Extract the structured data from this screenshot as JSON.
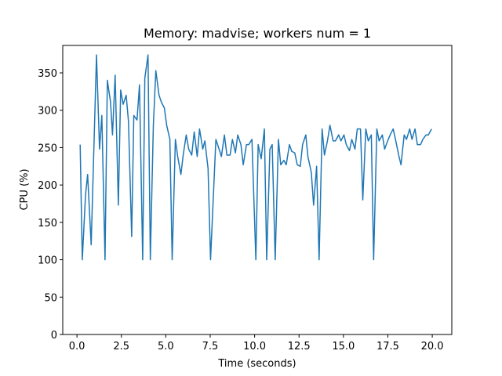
{
  "chart_data": {
    "type": "line",
    "title": "Memory: madvise; workers num = 1",
    "x_label": "Time (seconds)",
    "y_label": "CPU (%)",
    "xlim": [
      -0.8,
      21.1
    ],
    "ylim": [
      0,
      386.7
    ],
    "xticks": [
      {
        "value": 0,
        "label": "0.0"
      },
      {
        "value": 2.5,
        "label": "2.5"
      },
      {
        "value": 5,
        "label": "5.0"
      },
      {
        "value": 7.5,
        "label": "7.5"
      },
      {
        "value": 10,
        "label": "10.0"
      },
      {
        "value": 12.5,
        "label": "12.5"
      },
      {
        "value": 15,
        "label": "15.0"
      },
      {
        "value": 17.5,
        "label": "17.5"
      },
      {
        "value": 20,
        "label": "20.0"
      }
    ],
    "yticks": [
      0,
      50,
      100,
      150,
      200,
      250,
      300,
      350
    ],
    "grid": false,
    "series": [
      {
        "color": "#1f77b4",
        "x": [
          0.18,
          0.3,
          0.48,
          0.6,
          0.8,
          1.1,
          1.27,
          1.4,
          1.58,
          1.71,
          1.89,
          2.0,
          2.15,
          2.33,
          2.46,
          2.6,
          2.77,
          2.9,
          3.08,
          3.2,
          3.38,
          3.52,
          3.7,
          3.82,
          4.0,
          4.13,
          4.3,
          4.44,
          4.62,
          4.75,
          4.92,
          5.05,
          5.23,
          5.36,
          5.54,
          5.67,
          5.85,
          5.98,
          6.15,
          6.29,
          6.46,
          6.6,
          6.77,
          6.9,
          7.08,
          7.2,
          7.38,
          7.52,
          7.82,
          8.0,
          8.13,
          8.3,
          8.44,
          8.62,
          8.75,
          8.92,
          9.05,
          9.23,
          9.36,
          9.54,
          9.67,
          9.85,
          10.07,
          10.2,
          10.37,
          10.55,
          10.68,
          10.86,
          10.99,
          11.16,
          11.34,
          11.47,
          11.65,
          11.78,
          11.96,
          12.09,
          12.26,
          12.4,
          12.57,
          12.7,
          12.88,
          13.0,
          13.19,
          13.32,
          13.49,
          13.63,
          13.8,
          13.93,
          14.1,
          14.24,
          14.42,
          14.55,
          14.73,
          14.86,
          15.03,
          15.16,
          15.34,
          15.47,
          15.65,
          15.78,
          15.96,
          16.09,
          16.26,
          16.4,
          16.57,
          16.7,
          16.88,
          17.01,
          17.19,
          17.32,
          17.49,
          17.63,
          17.8,
          17.93,
          18.11,
          18.24,
          18.42,
          18.55,
          18.73,
          18.86,
          19.03,
          19.16,
          19.34,
          19.47,
          19.65,
          19.78,
          19.96
        ],
        "values": [
          254,
          100,
          186,
          214,
          120,
          374,
          248,
          293,
          100,
          340,
          311,
          267,
          347,
          173,
          327,
          308,
          320,
          285,
          131,
          293,
          287,
          334,
          100,
          343,
          374,
          100,
          280,
          353,
          320,
          311,
          303,
          280,
          261,
          100,
          261,
          238,
          214,
          240,
          267,
          248,
          240,
          271,
          238,
          275,
          248,
          259,
          222,
          100,
          261,
          248,
          238,
          267,
          240,
          240,
          261,
          243,
          267,
          254,
          227,
          254,
          254,
          261,
          100,
          254,
          235,
          275,
          100,
          248,
          254,
          100,
          261,
          227,
          233,
          227,
          254,
          245,
          243,
          227,
          225,
          254,
          267,
          238,
          217,
          173,
          225,
          100,
          275,
          240,
          259,
          280,
          259,
          259,
          267,
          259,
          267,
          254,
          246,
          261,
          248,
          275,
          275,
          180,
          275,
          259,
          267,
          100,
          275,
          259,
          267,
          248,
          259,
          267,
          275,
          261,
          240,
          227,
          267,
          261,
          275,
          261,
          275,
          254,
          254,
          261,
          267,
          267,
          275
        ]
      }
    ]
  }
}
